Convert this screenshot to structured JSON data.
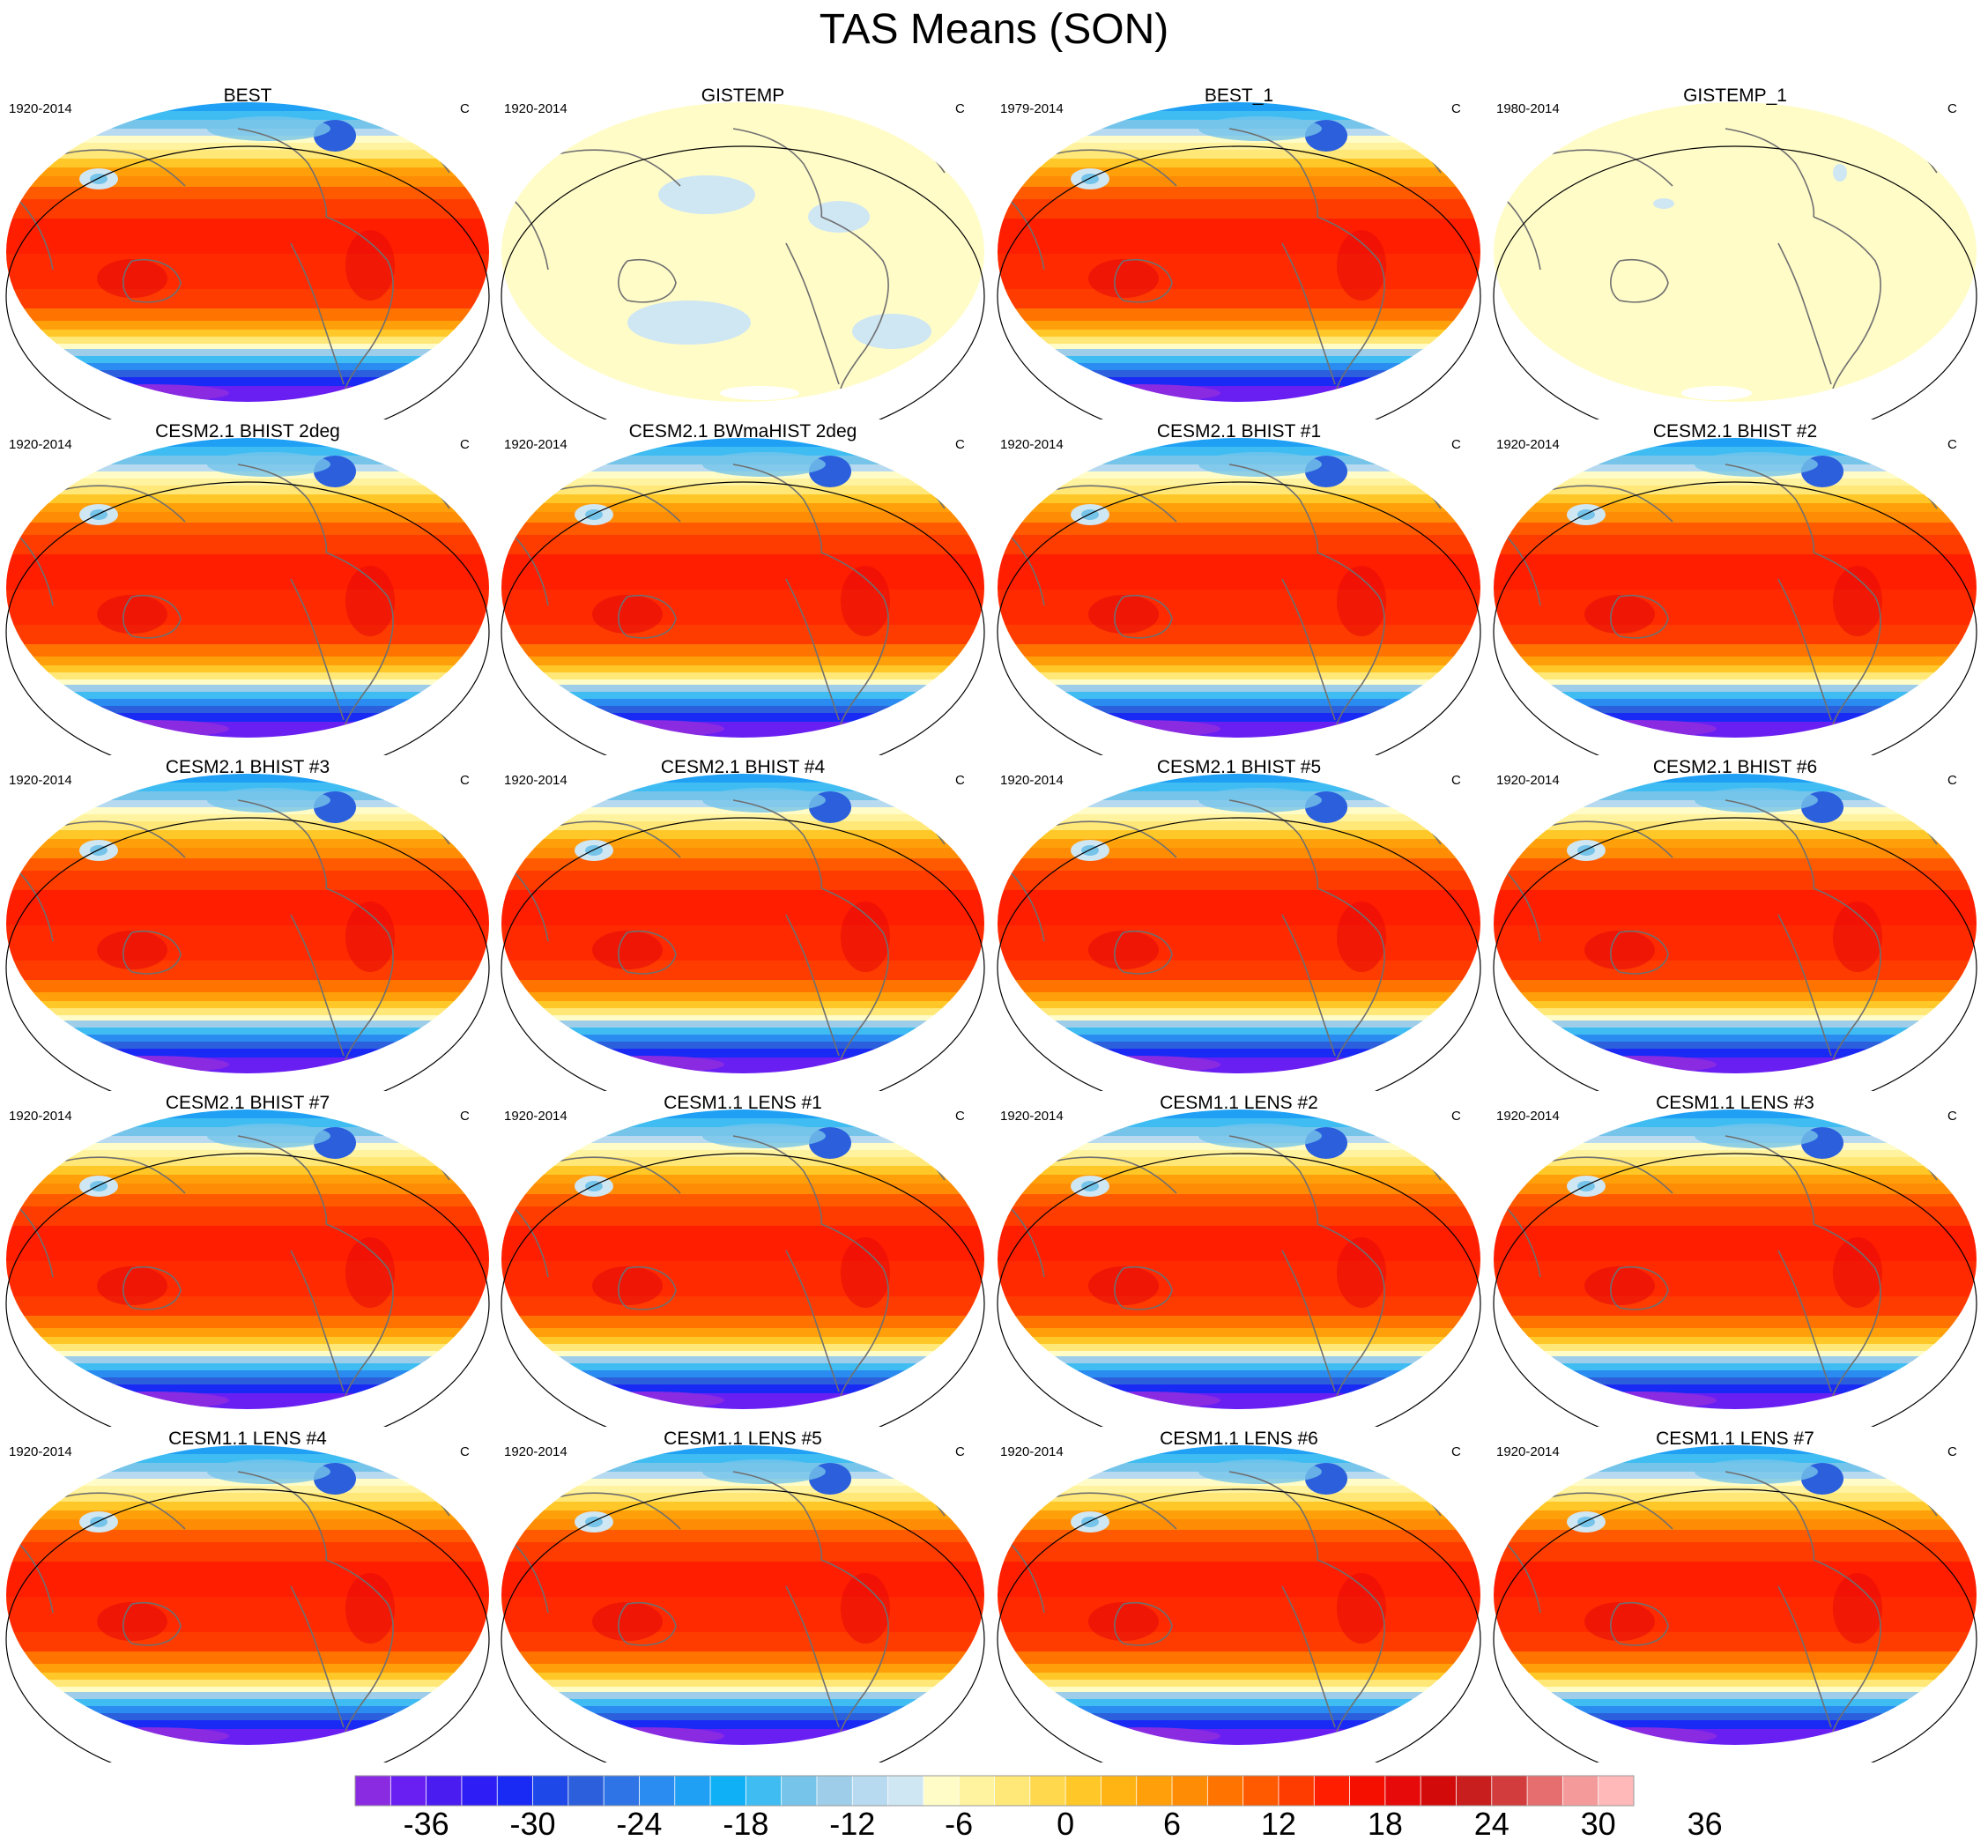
{
  "title": "TAS Means (SON)",
  "panels": [
    {
      "title": "BEST",
      "period": "1920-2014",
      "units": "C",
      "kind": "obs"
    },
    {
      "title": "GISTEMP",
      "period": "1920-2014",
      "units": "C",
      "kind": "anom"
    },
    {
      "title": "BEST_1",
      "period": "1979-2014",
      "units": "C",
      "kind": "obs"
    },
    {
      "title": "GISTEMP_1",
      "period": "1980-2014",
      "units": "C",
      "kind": "anom2"
    },
    {
      "title": "CESM2.1 BHIST 2deg",
      "period": "1920-2014",
      "units": "C",
      "kind": "model"
    },
    {
      "title": "CESM2.1 BWmaHIST 2deg",
      "period": "1920-2014",
      "units": "C",
      "kind": "model"
    },
    {
      "title": "CESM2.1 BHIST #1",
      "period": "1920-2014",
      "units": "C",
      "kind": "model"
    },
    {
      "title": "CESM2.1 BHIST #2",
      "period": "1920-2014",
      "units": "C",
      "kind": "model"
    },
    {
      "title": "CESM2.1 BHIST #3",
      "period": "1920-2014",
      "units": "C",
      "kind": "model"
    },
    {
      "title": "CESM2.1 BHIST #4",
      "period": "1920-2014",
      "units": "C",
      "kind": "model"
    },
    {
      "title": "CESM2.1 BHIST #5",
      "period": "1920-2014",
      "units": "C",
      "kind": "model"
    },
    {
      "title": "CESM2.1 BHIST #6",
      "period": "1920-2014",
      "units": "C",
      "kind": "model"
    },
    {
      "title": "CESM2.1 BHIST #7",
      "period": "1920-2014",
      "units": "C",
      "kind": "model"
    },
    {
      "title": "CESM1.1 LENS #1",
      "period": "1920-2014",
      "units": "C",
      "kind": "model"
    },
    {
      "title": "CESM1.1 LENS #2",
      "period": "1920-2014",
      "units": "C",
      "kind": "model"
    },
    {
      "title": "CESM1.1 LENS #3",
      "period": "1920-2014",
      "units": "C",
      "kind": "model"
    },
    {
      "title": "CESM1.1 LENS #4",
      "period": "1920-2014",
      "units": "C",
      "kind": "model"
    },
    {
      "title": "CESM1.1 LENS #5",
      "period": "1920-2014",
      "units": "C",
      "kind": "model"
    },
    {
      "title": "CESM1.1 LENS #6",
      "period": "1920-2014",
      "units": "C",
      "kind": "model"
    },
    {
      "title": "CESM1.1 LENS #7",
      "period": "1920-2014",
      "units": "C",
      "kind": "model"
    }
  ],
  "colorbar": {
    "labels": [
      "-36",
      "-30",
      "-24",
      "-18",
      "-12",
      "-6",
      "0",
      "6",
      "12",
      "18",
      "24",
      "30",
      "36"
    ],
    "colors": [
      "#8a2be2",
      "#6a1ff2",
      "#4b1cf0",
      "#2f1df5",
      "#1a2af5",
      "#1e48e8",
      "#2b5fdc",
      "#2f74e6",
      "#2a8cf0",
      "#1fa0f5",
      "#10b0f6",
      "#3fbdf2",
      "#76c4ea",
      "#9dcde9",
      "#b7daf0",
      "#cfe6f3",
      "#fffcc8",
      "#fff3a0",
      "#ffe778",
      "#ffd84e",
      "#ffc828",
      "#ffb414",
      "#ffa00a",
      "#ff8c05",
      "#ff7400",
      "#ff5a00",
      "#ff3c00",
      "#ff1e00",
      "#f50f00",
      "#e60a0a",
      "#d20a0a",
      "#c81e1e",
      "#d23c3c",
      "#e66e6e",
      "#f59a9a",
      "#ffb9b9"
    ]
  }
}
